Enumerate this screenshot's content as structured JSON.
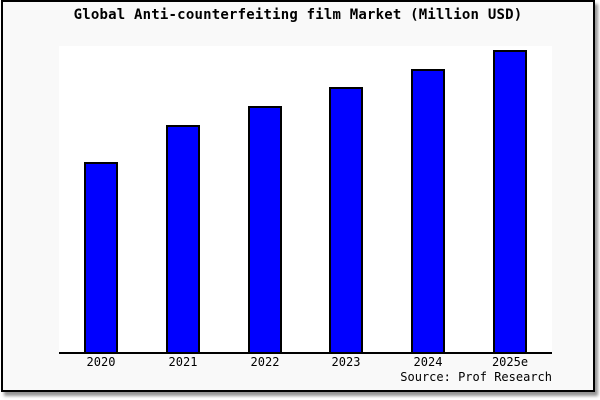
{
  "page": {
    "background": "#ffffff"
  },
  "card": {
    "background": "#f9f9f9",
    "border_color": "#000000",
    "shadow": "gray drop shadow bottom-right"
  },
  "chart_data": {
    "type": "bar",
    "title": "Global Anti-counterfeiting film Market (Million USD)",
    "categories": [
      "2020",
      "2021",
      "2022",
      "2023",
      "2024",
      "2025e"
    ],
    "values": [
      190,
      227,
      246,
      265,
      283,
      302
    ],
    "values_note": "No y-axis scale, ticks or gridlines are shown in the chart; values are relative bar heights measured in pixels (steadily increasing, 2025e tallest).",
    "xlabel": "",
    "ylabel": "",
    "legend_position": "none",
    "grid": false,
    "y_axis_visible": false,
    "bar_color": "#0000ff",
    "bar_edge_color": "#000000",
    "axis_color": "#000000",
    "plot_background": "#ffffff"
  },
  "source": {
    "label": "Source: Prof Research"
  }
}
